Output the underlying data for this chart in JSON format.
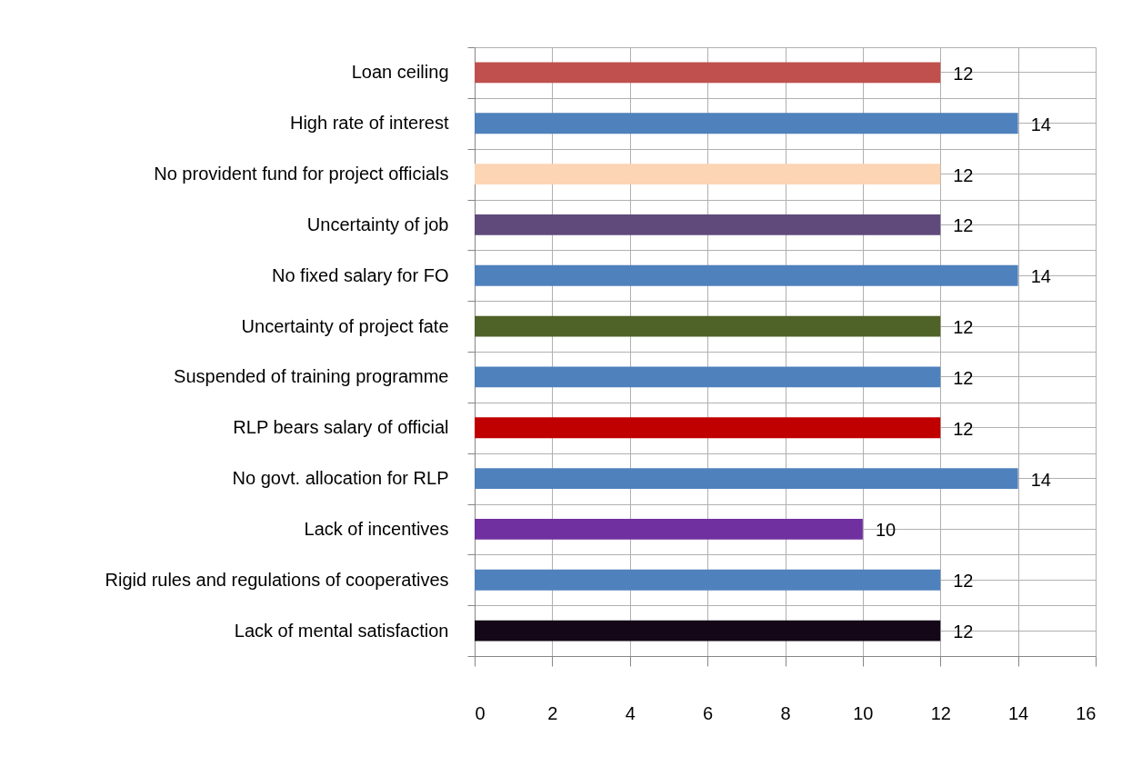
{
  "chart_data": {
    "type": "bar",
    "orientation": "horizontal",
    "categories": [
      "Loan ceiling",
      "High rate of interest",
      "No provident fund for project officials",
      "Uncertainty of job",
      "No fixed salary for FO",
      "Uncertainty of project fate",
      "Suspended of training programme",
      "RLP bears salary of official",
      "No govt. allocation for RLP",
      "Lack of incentives",
      "Rigid rules and regulations of cooperatives",
      "Lack of mental satisfaction"
    ],
    "values": [
      12,
      14,
      12,
      12,
      14,
      12,
      12,
      12,
      14,
      10,
      12,
      12
    ],
    "colors": [
      "#c0504d",
      "#4f81bd",
      "#fcd5b5",
      "#604a7b",
      "#4f81bd",
      "#4f6228",
      "#4f81bd",
      "#c00000",
      "#4f81bd",
      "#7030a0",
      "#4f81bd",
      "#140818"
    ],
    "xlim": [
      0,
      16
    ],
    "xticks": [
      0,
      2,
      4,
      6,
      8,
      10,
      12,
      14,
      16
    ],
    "grid": true,
    "data_labels": true
  }
}
